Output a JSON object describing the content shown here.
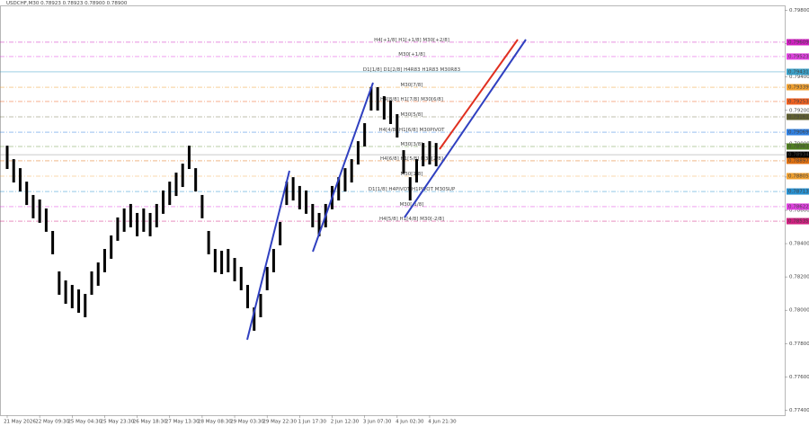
{
  "chart_data": {
    "type": "range-bar",
    "title": "USDCHF,M30  0.78923 0.78923 0.78900 0.78900",
    "categories": [
      "21 May 2026",
      null,
      null,
      null,
      null,
      "22 May 09:30",
      null,
      null,
      null,
      null,
      "25 May 04:30",
      null,
      null,
      null,
      null,
      "25 May 23:30",
      null,
      null,
      null,
      null,
      "26 May 18:30",
      null,
      null,
      null,
      null,
      "27 May 13:30",
      null,
      null,
      null,
      null,
      "28 May 08:30",
      null,
      null,
      null,
      null,
      "29 May 03:30",
      null,
      null,
      null,
      null,
      "29 May 22:30",
      null,
      null,
      null,
      null,
      "1 Jun 17:30",
      null,
      null,
      null,
      null,
      "2 Jun 12:30",
      null,
      null,
      null,
      null,
      "3 Jun 07:30",
      null,
      null,
      null,
      null,
      "4 Jun 02:30",
      null,
      null,
      null,
      null,
      "4 Jun 21:30",
      null
    ],
    "series": [
      {
        "name": "High",
        "color": "#000000",
        "values": [
          0.78988,
          0.78907,
          0.78853,
          0.78772,
          0.78692,
          0.78665,
          0.78611,
          0.78476,
          0.78233,
          0.78179,
          0.78152,
          0.78125,
          0.78098,
          0.78233,
          0.78287,
          0.78368,
          0.78449,
          0.78557,
          0.78611,
          0.78638,
          0.78584,
          0.78611,
          0.78584,
          0.78638,
          0.78719,
          0.78772,
          0.78826,
          0.7888,
          0.78988,
          0.78853,
          0.78692,
          0.78476,
          0.78368,
          0.78357,
          0.78368,
          0.78314,
          0.7826,
          0.78152,
          0.78017,
          0.78098,
          0.7826,
          0.78368,
          0.7853,
          0.78772,
          0.78799,
          0.78746,
          0.78719,
          0.78638,
          0.78584,
          0.78638,
          0.78746,
          0.78799,
          0.78853,
          0.78907,
          0.79015,
          0.79123,
          0.79339,
          0.79339,
          0.79285,
          0.79258,
          0.79177,
          0.78961,
          0.78799,
          0.78907,
          0.79004,
          0.79015,
          0.79004
        ]
      },
      {
        "name": "Low",
        "color": "#000000",
        "values": [
          0.78848,
          0.78767,
          0.78713,
          0.78632,
          0.78552,
          0.78525,
          0.78471,
          0.78336,
          0.78093,
          0.78039,
          0.78012,
          0.77985,
          0.77958,
          0.78093,
          0.78147,
          0.78228,
          0.78309,
          0.78417,
          0.78471,
          0.78498,
          0.78444,
          0.78471,
          0.78444,
          0.78498,
          0.78579,
          0.78632,
          0.78686,
          0.7874,
          0.78848,
          0.78713,
          0.78552,
          0.78336,
          0.78228,
          0.78217,
          0.78228,
          0.78174,
          0.7812,
          0.78012,
          0.77877,
          0.77958,
          0.7812,
          0.78228,
          0.7839,
          0.78632,
          0.78659,
          0.78606,
          0.78579,
          0.78498,
          0.78444,
          0.78498,
          0.78606,
          0.78659,
          0.78713,
          0.78767,
          0.78875,
          0.78983,
          0.79199,
          0.79199,
          0.79145,
          0.79118,
          0.79037,
          0.78821,
          0.78659,
          0.78767,
          0.78864,
          0.78875,
          0.78864
        ]
      }
    ],
    "ylim": [
      0.7737,
      0.7983
    ],
    "yticks": [
      {
        "value": 0.798,
        "label": "0.79800"
      },
      {
        "value": 0.796,
        "label": "0.79600"
      },
      {
        "value": 0.794,
        "label": "0.79400"
      },
      {
        "value": 0.792,
        "label": "0.79200"
      },
      {
        "value": 0.79,
        "label": "0.79000"
      },
      {
        "value": 0.788,
        "label": "0.78800"
      },
      {
        "value": 0.786,
        "label": "0.78600"
      },
      {
        "value": 0.784,
        "label": "0.78400"
      },
      {
        "value": 0.782,
        "label": "0.78200"
      },
      {
        "value": 0.78,
        "label": "0.78000"
      },
      {
        "value": 0.778,
        "label": "0.77800"
      },
      {
        "value": 0.776,
        "label": "0.77600"
      },
      {
        "value": 0.774,
        "label": "0.77400"
      }
    ],
    "levels": [
      {
        "label": "H4[+1/8] H1[+1/8] M30[+2/8]",
        "value": 0.79609,
        "color": "#d020c0"
      },
      {
        "label": "M30[+1/8]",
        "value": 0.79523,
        "color": "#e040e0"
      },
      {
        "label": "D1[1/8] D1[2/8] H4R83 H1R83 M30R83",
        "value": 0.79431,
        "color": "#3aa0c8"
      },
      {
        "label": "M30[7/8]",
        "value": 0.79339,
        "color": "#f0a030"
      },
      {
        "label": "H4[8/8] H1[7/8] M30[6/8]",
        "value": 0.79253,
        "color": "#f06020"
      },
      {
        "label": "M30[5/8]",
        "value": 0.79161,
        "color": "#606030"
      },
      {
        "label": "H4[4/8] H1[6/8] M30PIVOT",
        "value": 0.79069,
        "color": "#3080e0"
      },
      {
        "label": "M30[3/8]",
        "value": 0.78983,
        "color": "#508020"
      },
      {
        "label": "H4[6/8] H1[5/8] M30[2/8]",
        "value": 0.78897,
        "color": "#e07010"
      },
      {
        "label": "M30[1/8]",
        "value": 0.78805,
        "color": "#f0a030"
      },
      {
        "label": "D1[1/8] H4PIVOT H1PIVOT M30SUP",
        "value": 0.78713,
        "color": "#2890d0"
      },
      {
        "label": "M30[-1/8]",
        "value": 0.78622,
        "color": "#e040e0"
      },
      {
        "label": "H4[5/8] H1[4/8] M30[-2/8]",
        "value": 0.78535,
        "color": "#d02080"
      }
    ],
    "current_price": 0.78934
  }
}
